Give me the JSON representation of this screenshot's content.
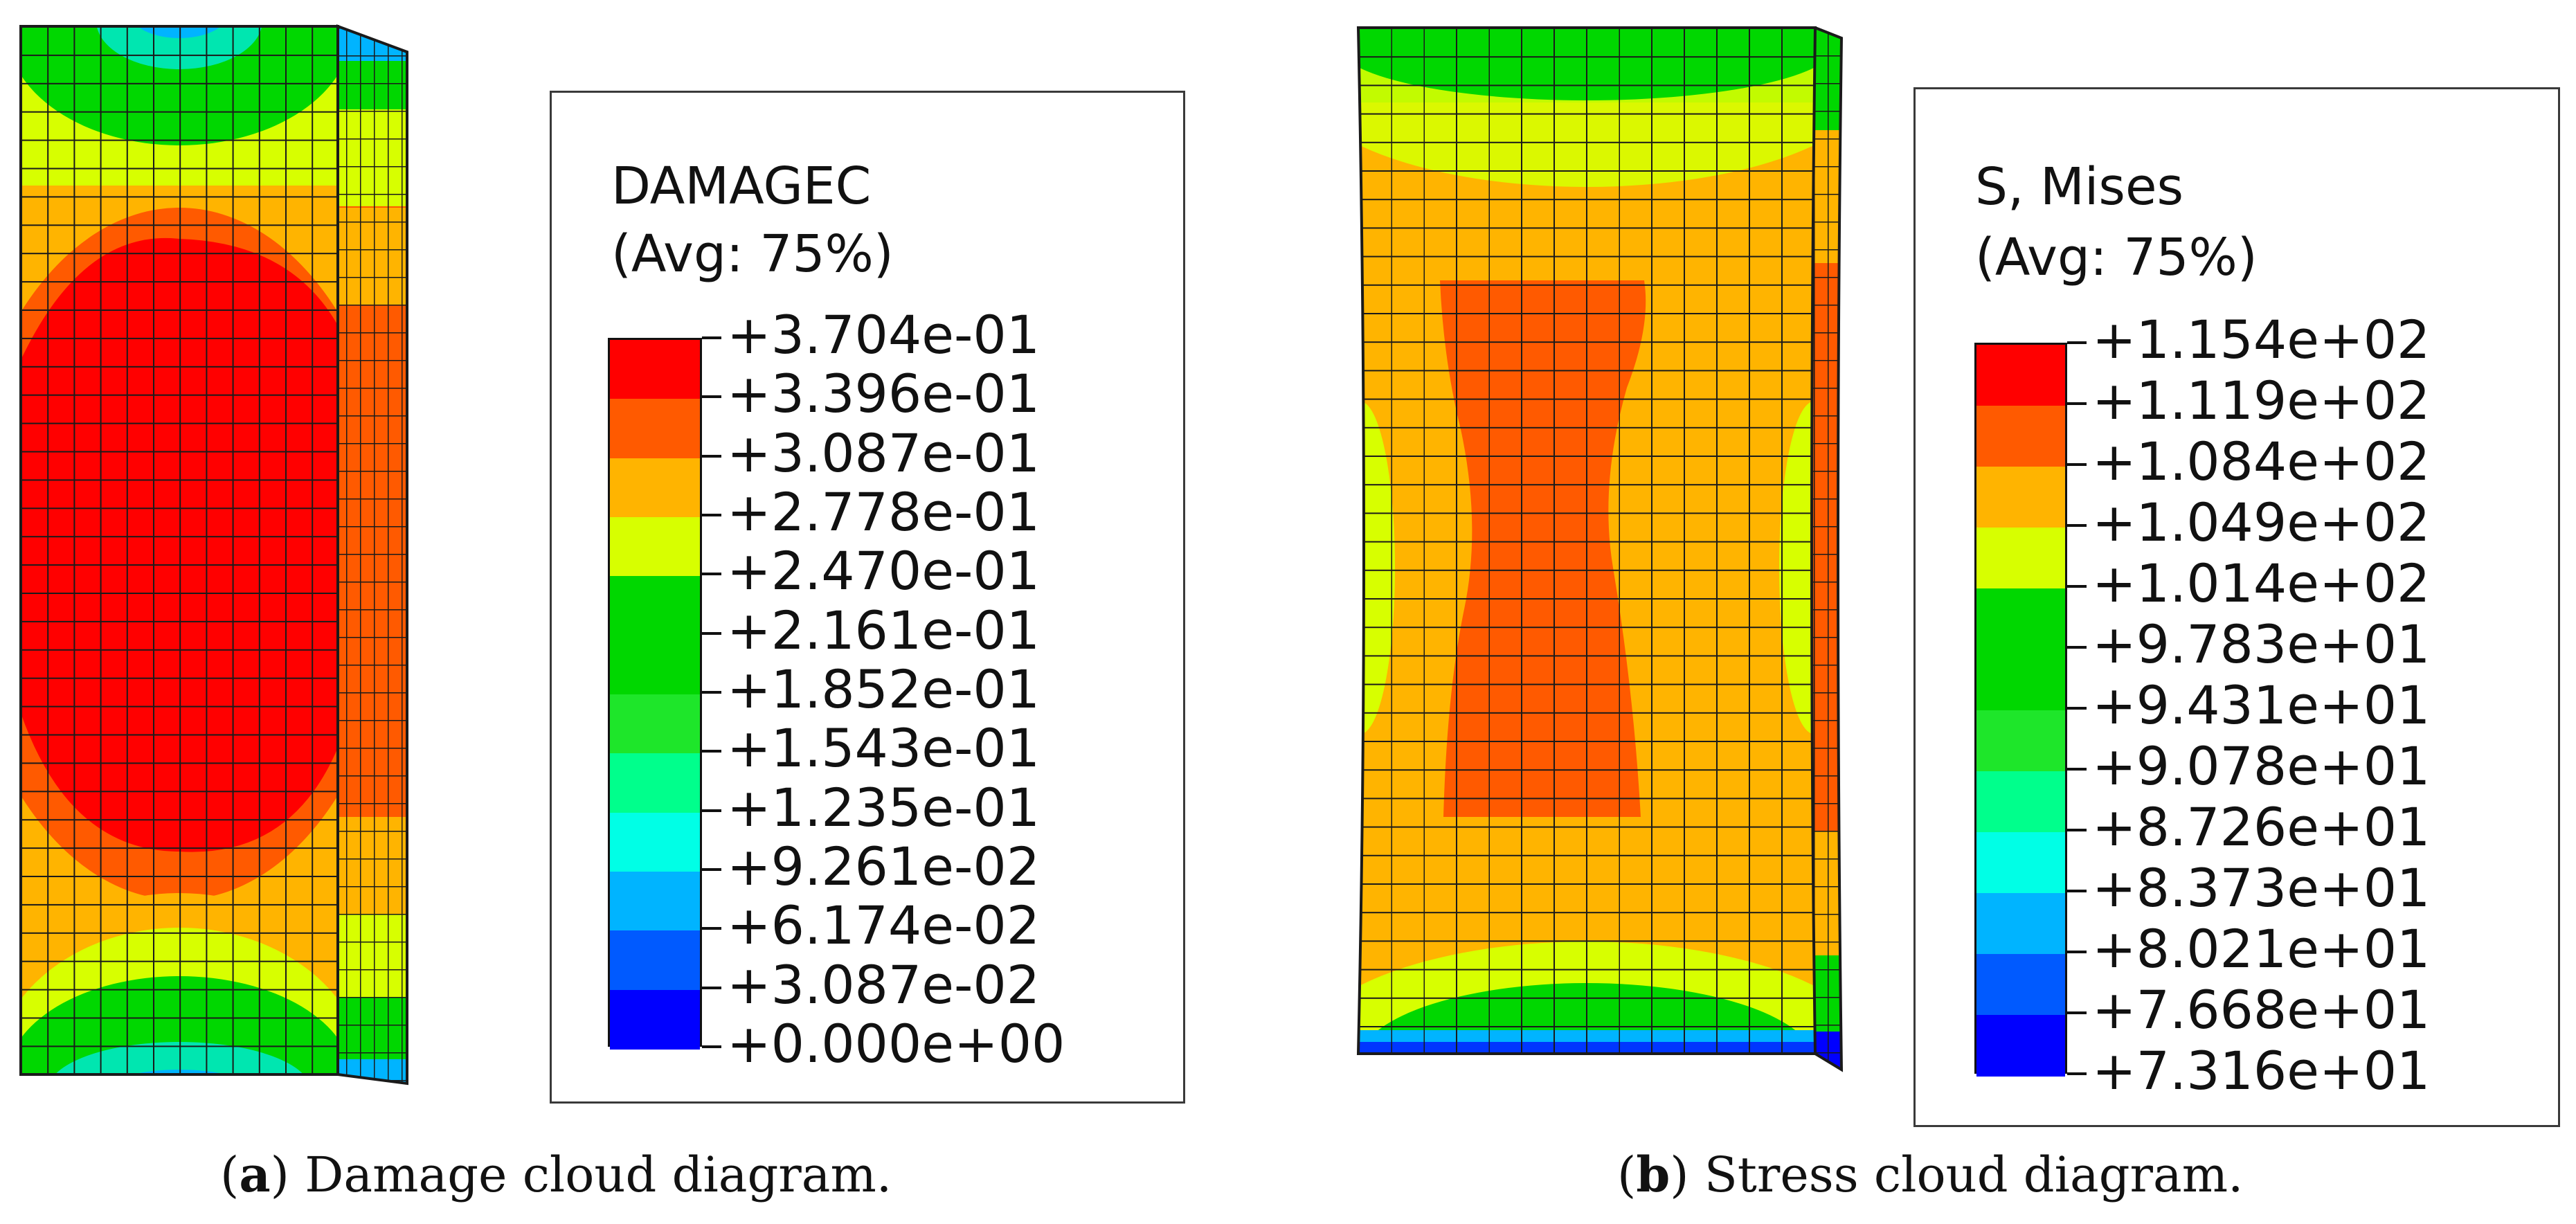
{
  "colors": {
    "red": "#ff0000",
    "orange_red": "#ff5a00",
    "orange": "#ffb400",
    "yellow": "#d7ff00",
    "green": "#00d700",
    "green2": "#1ee62a",
    "mint": "#00ff8c",
    "cyan": "#00ffe6",
    "sky": "#00b4ff",
    "blue": "#005aff",
    "dark_blue": "#0000ff"
  },
  "panel_a": {
    "legend": {
      "title_line1": "DAMAGEC",
      "title_line2": "(Avg: 75%)",
      "values": [
        "+3.704e-01",
        "+3.396e-01",
        "+3.087e-01",
        "+2.778e-01",
        "+2.470e-01",
        "+2.161e-01",
        "+1.852e-01",
        "+1.543e-01",
        "+1.235e-01",
        "+9.261e-02",
        "+6.174e-02",
        "+3.087e-02",
        "+0.000e+00"
      ],
      "band_colors": [
        "#ff0000",
        "#ff5a00",
        "#ffb400",
        "#d7ff00",
        "#00d700",
        "#00d700",
        "#1ee62a",
        "#00ff8c",
        "#00ffe6",
        "#00b4ff",
        "#005aff",
        "#0000ff"
      ]
    },
    "caption_letter": "a",
    "caption_text": " Damage cloud diagram."
  },
  "panel_b": {
    "legend": {
      "title_line1": "S, Mises",
      "title_line2": "(Avg: 75%)",
      "values": [
        "+1.154e+02",
        "+1.119e+02",
        "+1.084e+02",
        "+1.049e+02",
        "+1.014e+02",
        "+9.783e+01",
        "+9.431e+01",
        "+9.078e+01",
        "+8.726e+01",
        "+8.373e+01",
        "+8.021e+01",
        "+7.668e+01",
        "+7.316e+01"
      ],
      "band_colors": [
        "#ff0000",
        "#ff5a00",
        "#ffb400",
        "#d7ff00",
        "#00d700",
        "#00d700",
        "#1ee62a",
        "#00ff8c",
        "#00ffe6",
        "#00b4ff",
        "#005aff",
        "#0000ff"
      ]
    },
    "caption_letter": "b",
    "caption_text": " Stress cloud diagram."
  }
}
